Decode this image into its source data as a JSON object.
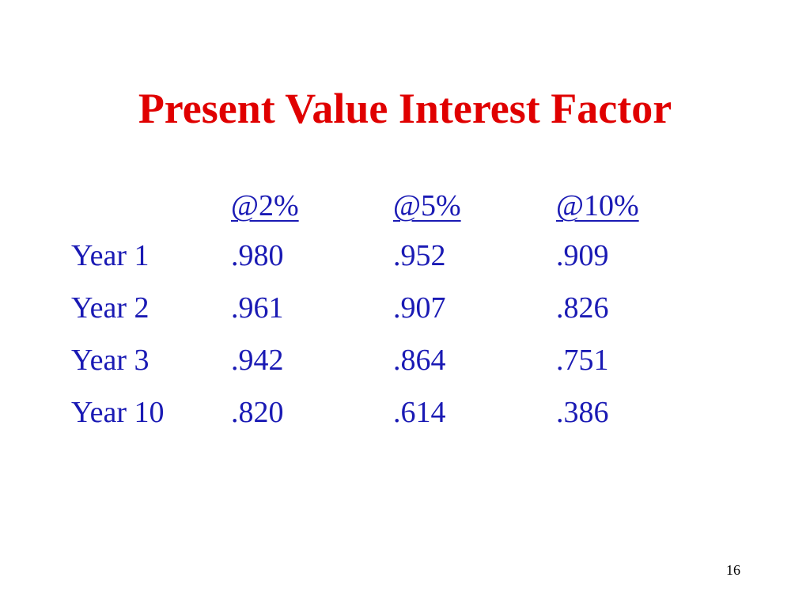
{
  "title": "Present Value Interest Factor",
  "table": {
    "header": [
      "@2%",
      "@5%",
      "@10%"
    ],
    "rows": [
      [
        "Year 1",
        ".980",
        ".952",
        ".909"
      ],
      [
        "Year 2",
        ".961",
        ".907",
        ".826"
      ],
      [
        "Year 3",
        ".942",
        ".864",
        ".751"
      ],
      [
        "Year 10",
        ".820",
        ".614",
        ".386"
      ]
    ]
  },
  "page_number": "16"
}
